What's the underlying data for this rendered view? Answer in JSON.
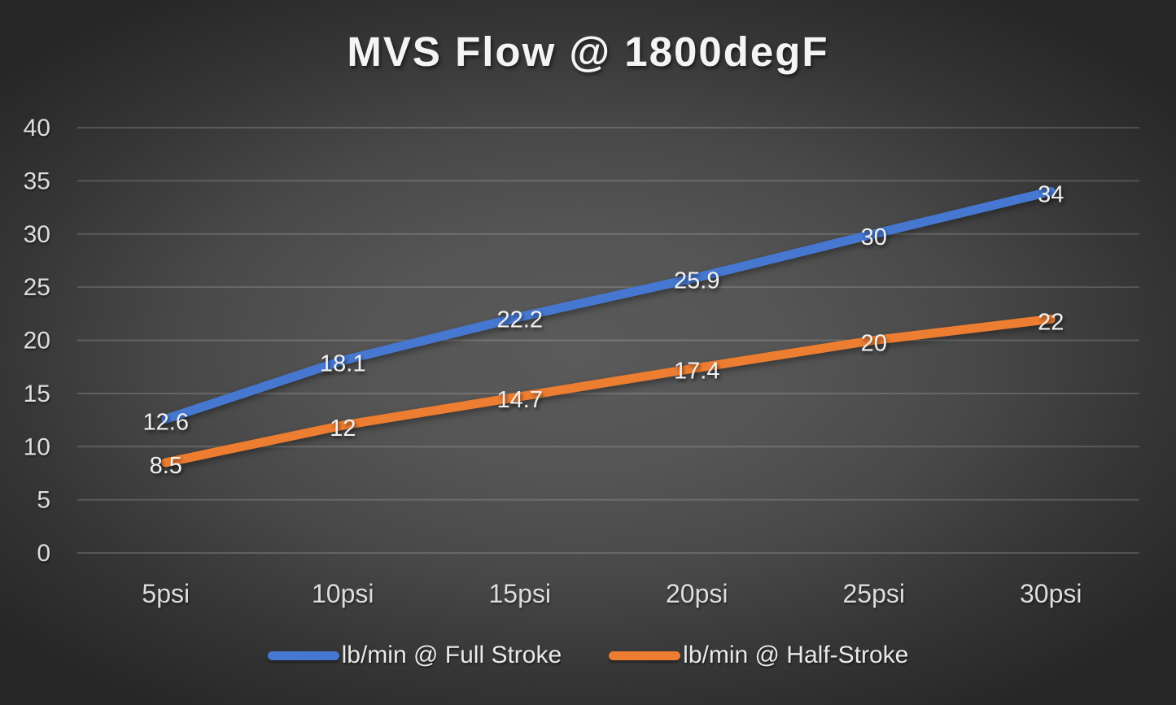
{
  "chart_data": {
    "type": "line",
    "title": "MVS Flow @ 1800degF",
    "categories": [
      "5psi",
      "10psi",
      "15psi",
      "20psi",
      "25psi",
      "30psi"
    ],
    "series": [
      {
        "name": "lb/min @ Full Stroke",
        "color": "#4678D2",
        "values": [
          12.6,
          18.1,
          22.2,
          25.9,
          30,
          34
        ]
      },
      {
        "name": "lb/min @ Half-Stroke",
        "color": "#ED7D31",
        "values": [
          8.5,
          12,
          14.7,
          17.4,
          20,
          22
        ]
      }
    ],
    "xlabel": "",
    "ylabel": "",
    "ylim": [
      0,
      40
    ],
    "ytick_step": 5,
    "yticks": [
      0,
      5,
      10,
      15,
      20,
      25,
      30,
      35,
      40
    ],
    "grid": true,
    "legend_position": "bottom",
    "data_labels_shown": true
  },
  "palette": {
    "background_center": "#5a5a5a",
    "background_edge": "#282727",
    "gridline": "rgba(255,255,255,0.17)",
    "axis_text": "#dddddd",
    "title_text": "#f4f4f4",
    "data_label_text": "#f1f1f1"
  }
}
